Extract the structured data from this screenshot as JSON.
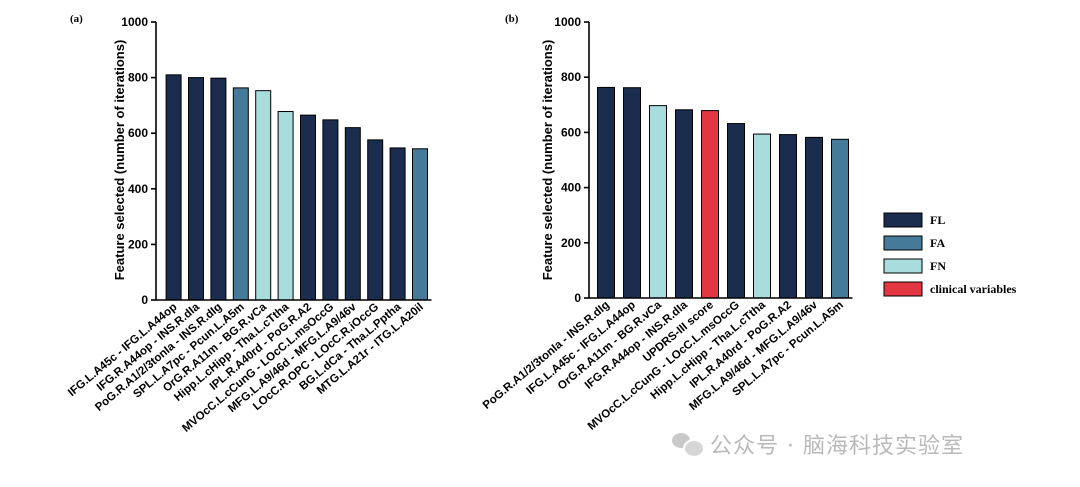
{
  "colors": {
    "FL": "#1b2d4f",
    "FA": "#467a99",
    "FN": "#a9dcdc",
    "clinical": "#e23742",
    "axis": "#000000",
    "watermark": "#b9b9b9"
  },
  "chart_data": [
    {
      "type": "bar",
      "panel_label": "(a)",
      "ylabel": "Feature selected (number of iterations)",
      "xlabel": "",
      "ylim": [
        0,
        1000
      ],
      "yticks": [
        "0",
        "200",
        "400",
        "600",
        "800",
        "1000"
      ],
      "grid": false,
      "categories": [
        "IFG.L.A45c - IFG.L.A44op",
        "IFG.R.A44op - INS.R.dIa",
        "PoG.R.A1/2/3tonIa - INS.R.dIg",
        "SPL.L.A7pc - Pcun.L.A5m",
        "OrG.R.A11m - BG.R.vCa",
        "Hipp.L.cHipp - Tha.L.cTtha",
        "IPL.R.A40rd - PoG.R.A2",
        "MVOcC.L.cCunG - LOcC.L.msOccG",
        "MFG.L.A9/46d - MFG.L.A9/46v",
        "LOcC.R.OPC - LOcC.R.iOccG",
        "BG.L.dCa - Tha.L.Pptha",
        "MTG.L.A21r - ITG.L.A20il"
      ],
      "values": [
        810,
        800,
        798,
        763,
        753,
        678,
        665,
        648,
        620,
        576,
        547,
        544
      ],
      "groups": [
        "FL",
        "FL",
        "FL",
        "FA",
        "FN",
        "FN",
        "FL",
        "FL",
        "FL",
        "FL",
        "FL",
        "FA"
      ]
    },
    {
      "type": "bar",
      "panel_label": "(b)",
      "ylabel": "Feature selected (number of iterations)",
      "xlabel": "",
      "ylim": [
        0,
        1000
      ],
      "yticks": [
        "0",
        "200",
        "400",
        "600",
        "800",
        "1000"
      ],
      "grid": false,
      "categories": [
        "PoG.R.A1/2/3tonIa - INS.R.dIg",
        "IFG.L.A45c - IFG.L.A44op",
        "OrG.R.A11m - BG.R.vCa",
        "IFG.R.A44op - INS.R.dIa",
        "UPDRS-III score",
        "MVOcC.L.cCunG - LOcC.L.msOccG",
        "Hipp.L.cHipp - Tha.L.cTtha",
        "IPL.R.A40rd - PoG.R.A2",
        "MFG.L.A9/46d - MFG.L.A9/46v",
        "SPL.L.A7pc - Pcun.L.A5m"
      ],
      "values": [
        763,
        762,
        697,
        682,
        679,
        632,
        594,
        592,
        582,
        575
      ],
      "groups": [
        "FL",
        "FL",
        "FN",
        "FL",
        "clinical",
        "FL",
        "FN",
        "FL",
        "FL",
        "FA"
      ]
    }
  ],
  "legend": [
    {
      "key": "FL",
      "label": "FL"
    },
    {
      "key": "FA",
      "label": "FA"
    },
    {
      "key": "FN",
      "label": "FN"
    },
    {
      "key": "clinical",
      "label": "clinical variables"
    }
  ],
  "watermark": {
    "text": "公众号 · 脑海科技实验室",
    "icon": "wechat-icon"
  }
}
